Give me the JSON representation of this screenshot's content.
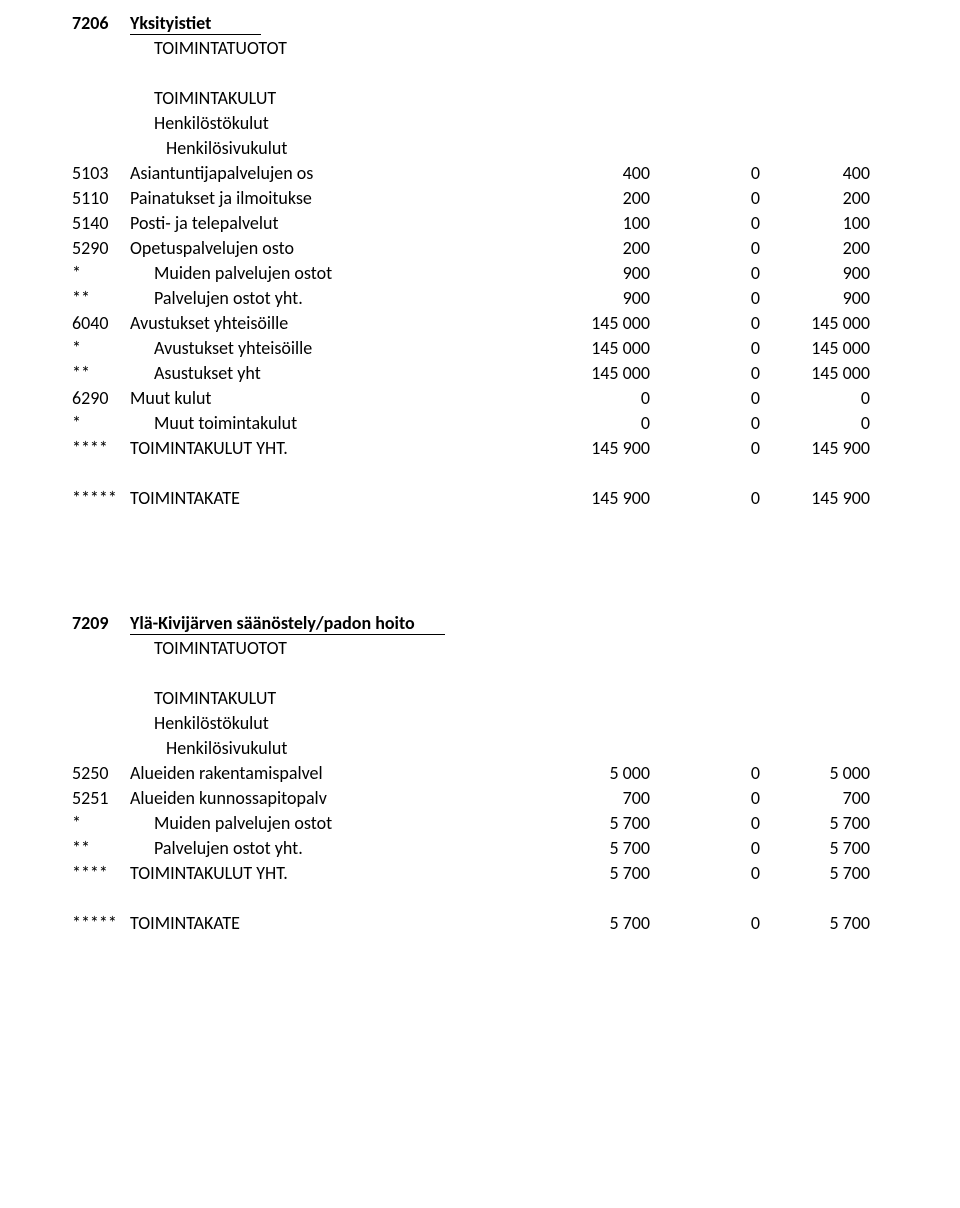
{
  "font_size_pt": 14,
  "colors": {
    "text": "#000000",
    "background": "#ffffff",
    "underline": "#000000"
  },
  "section1": {
    "header_code": "7206",
    "header_title": "Yksityistiet",
    "sub1": "TOIMINTATUOTOT",
    "sub2": "TOIMINTAKULUT",
    "sub3": "Henkilöstökulut",
    "sub4": "Henkilösivukulut",
    "rows": [
      {
        "code": "5103",
        "label": "Asiantuntijapalvelujen os",
        "v1": "400",
        "v2": "0",
        "v3": "400",
        "indent": 0
      },
      {
        "code": "5110",
        "label": "Painatukset ja ilmoitukse",
        "v1": "200",
        "v2": "0",
        "v3": "200",
        "indent": 0
      },
      {
        "code": "5140",
        "label": "Posti- ja telepalvelut",
        "v1": "100",
        "v2": "0",
        "v3": "100",
        "indent": 0
      },
      {
        "code": "5290",
        "label": "Opetuspalvelujen osto",
        "v1": "200",
        "v2": "0",
        "v3": "200",
        "indent": 0
      },
      {
        "code": "*",
        "label": "Muiden palvelujen ostot",
        "v1": "900",
        "v2": "0",
        "v3": "900",
        "indent": 1
      },
      {
        "code": "**",
        "label": "Palvelujen ostot yht.",
        "v1": "900",
        "v2": "0",
        "v3": "900",
        "indent": 1
      },
      {
        "code": "6040",
        "label": "Avustukset yhteisöille",
        "v1": "145 000",
        "v2": "0",
        "v3": "145 000",
        "indent": 0
      },
      {
        "code": "*",
        "label": "Avustukset yhteisöille",
        "v1": "145 000",
        "v2": "0",
        "v3": "145 000",
        "indent": 1
      },
      {
        "code": "**",
        "label": "Asustukset yht",
        "v1": "145 000",
        "v2": "0",
        "v3": "145 000",
        "indent": 1
      },
      {
        "code": "6290",
        "label": "Muut kulut",
        "v1": "0",
        "v2": "0",
        "v3": "0",
        "indent": 0
      },
      {
        "code": "*",
        "label": "Muut toimintakulut",
        "v1": "0",
        "v2": "0",
        "v3": "0",
        "indent": 1
      },
      {
        "code": "****",
        "label": "TOIMINTAKULUT YHT.",
        "v1": "145 900",
        "v2": "0",
        "v3": "145 900",
        "indent": 0
      }
    ],
    "footer": {
      "code": "*****",
      "label": "TOIMINTAKATE",
      "v1": "145 900",
      "v2": "0",
      "v3": "145 900"
    }
  },
  "section2": {
    "header_code": "7209",
    "header_title": "Ylä-Kivijärven säänöstely/padon hoito",
    "sub1": "TOIMINTATUOTOT",
    "sub2": "TOIMINTAKULUT",
    "sub3": "Henkilöstökulut",
    "sub4": "Henkilösivukulut",
    "rows": [
      {
        "code": "5250",
        "label": "Alueiden rakentamispalvel",
        "v1": "5 000",
        "v2": "0",
        "v3": "5 000",
        "indent": 0
      },
      {
        "code": "5251",
        "label": "Alueiden kunnossapitopalv",
        "v1": "700",
        "v2": "0",
        "v3": "700",
        "indent": 0
      },
      {
        "code": "*",
        "label": "Muiden palvelujen ostot",
        "v1": "5 700",
        "v2": "0",
        "v3": "5 700",
        "indent": 1
      },
      {
        "code": "**",
        "label": "Palvelujen ostot yht.",
        "v1": "5 700",
        "v2": "0",
        "v3": "5 700",
        "indent": 1
      },
      {
        "code": "****",
        "label": "TOIMINTAKULUT YHT.",
        "v1": "5 700",
        "v2": "0",
        "v3": "5 700",
        "indent": 0
      }
    ],
    "footer": {
      "code": "*****",
      "label": "TOIMINTAKATE",
      "v1": "5 700",
      "v2": "0",
      "v3": "5 700"
    }
  }
}
